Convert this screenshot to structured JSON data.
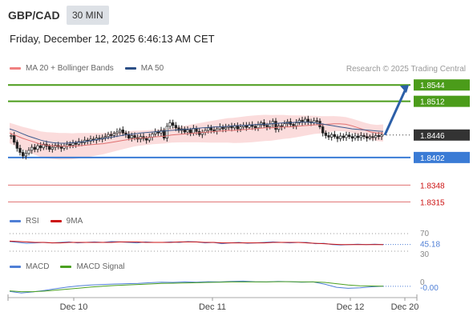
{
  "header": {
    "symbol": "GBP/CAD",
    "timeframe": "30 MIN",
    "datetime": "Friday, December 12, 2025 6:46:13 AM CET"
  },
  "main_legend": [
    {
      "label": "MA 20 + Bollinger Bands",
      "color": "#f08080"
    },
    {
      "label": "MA 50",
      "color": "#2c4f86"
    }
  ],
  "credit": "Research © 2025 Trading Central",
  "rsi_legend": [
    {
      "label": "RSI",
      "color": "#4f7fd6"
    },
    {
      "label": "9MA",
      "color": "#cc1111"
    }
  ],
  "macd_legend": [
    {
      "label": "MACD",
      "color": "#4f7fd6"
    },
    {
      "label": "MACD Signal",
      "color": "#4aa020"
    }
  ],
  "chart_data": [
    {
      "type": "candlestick",
      "panel": "price",
      "ylim": [
        1.83,
        1.856
      ],
      "levels": [
        {
          "label": "1.8544",
          "value": 1.8544,
          "kind": "resistance",
          "color": "#4b9c1a"
        },
        {
          "label": "1.8512",
          "value": 1.8512,
          "kind": "resistance",
          "color": "#4b9c1a"
        },
        {
          "label": "1.8446",
          "value": 1.8446,
          "kind": "current",
          "color": "#333333"
        },
        {
          "label": "1.8402",
          "value": 1.8402,
          "kind": "pivot",
          "color": "#3a7bd5"
        },
        {
          "label": "1.8348",
          "value": 1.8348,
          "kind": "support",
          "color": "#cc1111"
        },
        {
          "label": "1.8315",
          "value": 1.8315,
          "kind": "support",
          "color": "#cc1111"
        }
      ],
      "closes": [
        1.8445,
        1.8432,
        1.842,
        1.8412,
        1.8405,
        1.841,
        1.8416,
        1.8422,
        1.8418,
        1.8425,
        1.8421,
        1.8428,
        1.8424,
        1.8418,
        1.8422,
        1.8426,
        1.8423,
        1.842,
        1.8424,
        1.8428,
        1.8426,
        1.843,
        1.8428,
        1.8433,
        1.8431,
        1.8436,
        1.8434,
        1.8438,
        1.8436,
        1.844,
        1.8438,
        1.8441,
        1.8443,
        1.8447,
        1.8445,
        1.8449,
        1.8452,
        1.8456,
        1.845,
        1.8447,
        1.844,
        1.8445,
        1.8441,
        1.8438,
        1.8443,
        1.8439,
        1.8436,
        1.8442,
        1.8448,
        1.8452,
        1.845,
        1.8455,
        1.844,
        1.8463,
        1.847,
        1.8465,
        1.846,
        1.8455,
        1.8458,
        1.8452,
        1.8456,
        1.845,
        1.8459,
        1.8453,
        1.8447,
        1.8451,
        1.8455,
        1.846,
        1.8456,
        1.8454,
        1.8458,
        1.8462,
        1.8458,
        1.8461,
        1.8463,
        1.846,
        1.8464,
        1.8458,
        1.8462,
        1.8465,
        1.8461,
        1.8466,
        1.8463,
        1.846,
        1.8466,
        1.847,
        1.8465,
        1.8462,
        1.8468,
        1.8473,
        1.8457,
        1.8464,
        1.8462,
        1.8468,
        1.8472,
        1.8467,
        1.8464,
        1.847,
        1.8475,
        1.8471,
        1.8477,
        1.8472,
        1.847,
        1.8474,
        1.8473,
        1.8462,
        1.845,
        1.8445,
        1.8442,
        1.8447,
        1.8443,
        1.8439,
        1.8444,
        1.8441,
        1.8446,
        1.8443,
        1.844,
        1.8444,
        1.8441,
        1.8445,
        1.8443,
        1.844,
        1.8443,
        1.8441,
        1.8445,
        1.8443,
        1.8446
      ],
      "ma20": [
        1.845,
        1.8445,
        1.844,
        1.8436,
        1.8432,
        1.8428,
        1.8426,
        1.8425,
        1.8424,
        1.8424,
        1.8424,
        1.8425,
        1.8426,
        1.8427,
        1.8428,
        1.8429,
        1.8431,
        1.8433,
        1.8435,
        1.8437,
        1.8439,
        1.844,
        1.8441,
        1.8442,
        1.8443,
        1.8444,
        1.8446,
        1.8447,
        1.8448,
        1.8449,
        1.845,
        1.8451,
        1.8452,
        1.8453,
        1.8454,
        1.8455,
        1.8455,
        1.8456,
        1.8457,
        1.8458,
        1.8459,
        1.846,
        1.846,
        1.8461,
        1.8462,
        1.8462,
        1.8463,
        1.8464,
        1.8465,
        1.8466,
        1.8466,
        1.8467,
        1.8468,
        1.8468,
        1.8467,
        1.8464,
        1.846,
        1.8456,
        1.8452,
        1.845,
        1.845
      ],
      "ma50": [
        1.8458,
        1.8454,
        1.8449,
        1.8444,
        1.844,
        1.8436,
        1.8433,
        1.8431,
        1.843,
        1.843,
        1.8431,
        1.8432,
        1.8433,
        1.8435,
        1.8437,
        1.8439,
        1.8441,
        1.8443,
        1.8445,
        1.8447,
        1.8448,
        1.845,
        1.8451,
        1.8452,
        1.8453,
        1.8454,
        1.8455,
        1.8456,
        1.8457,
        1.8458,
        1.8459,
        1.846,
        1.8461,
        1.8462,
        1.8462,
        1.8463,
        1.8464,
        1.8465,
        1.8465,
        1.8466,
        1.8467,
        1.8467,
        1.8468,
        1.8469,
        1.847,
        1.847,
        1.8471,
        1.8471,
        1.8471,
        1.847,
        1.8468,
        1.8466,
        1.8464,
        1.8462,
        1.846,
        1.8458,
        1.8457,
        1.8456,
        1.8455,
        1.8454,
        1.8453
      ],
      "projection": {
        "from": 1.8446,
        "to": 1.8544
      },
      "xticks": [
        "Dec 10",
        "Dec 11",
        "Dec 12",
        "Dec 20"
      ]
    },
    {
      "type": "line",
      "panel": "rsi",
      "ylim": [
        30,
        70
      ],
      "tick_labels": [
        "70",
        "45.18",
        "30"
      ],
      "last_value": "45.18",
      "rsi": [
        52,
        50,
        48,
        49,
        50,
        49,
        50,
        51,
        49,
        50,
        51,
        50,
        52,
        51,
        50,
        49,
        51,
        50,
        50,
        51,
        50,
        52,
        51,
        49,
        50,
        47,
        49,
        50,
        48,
        49,
        50,
        51,
        50,
        49,
        50,
        50,
        47,
        48,
        45,
        44,
        45,
        46,
        45,
        46,
        45
      ],
      "ma": [
        53,
        52,
        51,
        50,
        50,
        49,
        49,
        50,
        50,
        50,
        50,
        50,
        50,
        51,
        51,
        51,
        50,
        50,
        50,
        50,
        51,
        51,
        51,
        50,
        50,
        49,
        49,
        49,
        49,
        49,
        49,
        50,
        50,
        50,
        50,
        49,
        48,
        47,
        46,
        45,
        45,
        45,
        45,
        45,
        45
      ]
    },
    {
      "type": "line",
      "panel": "macd",
      "tick_labels": [
        "0",
        "-0.00"
      ],
      "last_value": "-0.00",
      "macd": [
        -3.2,
        -3.8,
        -3.4,
        -2.8,
        -2.1,
        -1.5,
        -1.0,
        -0.7,
        -0.5,
        -0.3,
        -0.2,
        -0.1,
        0.2,
        0.4,
        0.3,
        0.5,
        0.4,
        0.6,
        0.5,
        0.7,
        0.8,
        0.6,
        0.5,
        0.7,
        0.6,
        0.4,
        0.5,
        -0.4,
        -1.6,
        -2.0,
        -1.8,
        -1.4,
        -1.2
      ],
      "signal": [
        -3.0,
        -3.3,
        -3.3,
        -3.1,
        -2.7,
        -2.3,
        -1.9,
        -1.5,
        -1.2,
        -0.9,
        -0.7,
        -0.5,
        -0.3,
        -0.1,
        0.0,
        0.1,
        0.2,
        0.3,
        0.4,
        0.5,
        0.5,
        0.5,
        0.5,
        0.6,
        0.6,
        0.5,
        0.5,
        0.3,
        -0.2,
        -0.7,
        -1.0,
        -1.1,
        -1.2
      ]
    }
  ]
}
